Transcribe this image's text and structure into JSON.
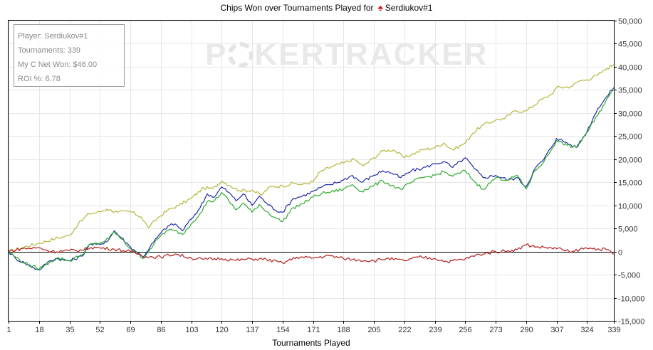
{
  "title": {
    "text_before": "Chips Won over Tournaments Played for",
    "player": "Serdiukov#1",
    "icon": "spade-icon"
  },
  "watermark": {
    "left": "P",
    "right": "KERTRACKER"
  },
  "stats": {
    "player": "Player: Serdiukov#1",
    "tournaments": "Tournaments: 339",
    "net_won": "My C Net Won: $46.00",
    "roi": "ROI %: 6.78"
  },
  "chart_data": {
    "type": "line",
    "title": "Chips Won over Tournaments Played for Serdiukov#1",
    "xlabel": "Tournaments Played",
    "ylabel": "",
    "xlim": [
      1,
      339
    ],
    "ylim": [
      -15000,
      50000
    ],
    "x_ticks": [
      1,
      18,
      35,
      52,
      69,
      86,
      103,
      120,
      137,
      154,
      171,
      188,
      205,
      222,
      239,
      256,
      273,
      290,
      307,
      324,
      339
    ],
    "y_ticks": [
      -15000,
      -10000,
      -5000,
      0,
      5000,
      10000,
      15000,
      20000,
      25000,
      30000,
      35000,
      40000,
      45000,
      50000
    ],
    "y_tick_labels": [
      "-15,000",
      "-10,000",
      "-5,000",
      "0",
      "5,000",
      "10,000",
      "15,000",
      "20,000",
      "25,000",
      "30,000",
      "35,000",
      "40,000",
      "45,000",
      "50,000"
    ],
    "grid": true,
    "series": [
      {
        "color": "#b5b53a",
        "x": [
          1,
          10,
          18,
          27,
          35,
          40,
          46,
          52,
          56,
          62,
          69,
          75,
          79,
          85,
          90,
          96,
          103,
          110,
          115,
          120,
          125,
          130,
          137,
          142,
          147,
          154,
          160,
          165,
          171,
          175,
          181,
          188,
          194,
          199,
          205,
          210,
          216,
          222,
          226,
          232,
          239,
          244,
          249,
          256,
          260,
          265,
          273,
          278,
          284,
          290,
          297,
          304,
          307,
          315,
          320,
          324,
          330,
          335,
          339
        ],
        "y": [
          0,
          1000,
          1800,
          2800,
          3500,
          6000,
          8200,
          8600,
          9200,
          8500,
          8700,
          7500,
          5200,
          7500,
          9000,
          10000,
          11500,
          13800,
          13600,
          15300,
          14200,
          13200,
          13300,
          12200,
          14000,
          14200,
          14800,
          14500,
          15100,
          17300,
          18300,
          19200,
          20000,
          18500,
          20300,
          21800,
          22000,
          20300,
          21000,
          22000,
          22500,
          23500,
          22000,
          23500,
          25500,
          27200,
          28500,
          28800,
          30500,
          30400,
          32500,
          34000,
          35500,
          35700,
          37000,
          37200,
          38200,
          39600,
          40500
        ]
      },
      {
        "color": "#1f2aa8",
        "x": [
          1,
          5,
          10,
          18,
          24,
          28,
          35,
          42,
          46,
          52,
          57,
          60,
          64,
          69,
          73,
          76,
          80,
          86,
          90,
          94,
          98,
          103,
          108,
          112,
          116,
          120,
          124,
          128,
          132,
          137,
          141,
          145,
          150,
          154,
          160,
          165,
          171,
          176,
          181,
          188,
          193,
          198,
          205,
          210,
          215,
          220,
          226,
          232,
          239,
          244,
          249,
          256,
          261,
          266,
          273,
          280,
          285,
          290,
          295,
          300,
          307,
          313,
          318,
          324,
          330,
          335,
          339
        ],
        "y": [
          0,
          -1500,
          -2500,
          -4000,
          -2000,
          -1500,
          -2000,
          -1000,
          1500,
          1500,
          2600,
          4500,
          3000,
          1000,
          -200,
          -1200,
          1000,
          4000,
          5500,
          6000,
          4500,
          7000,
          9500,
          12500,
          11800,
          14000,
          12800,
          11000,
          12500,
          10000,
          12000,
          10500,
          9000,
          8500,
          11500,
          12000,
          13000,
          14000,
          14500,
          15500,
          16500,
          15000,
          16500,
          17500,
          17000,
          16000,
          17500,
          18000,
          19000,
          19500,
          18200,
          20300,
          18000,
          16000,
          16500,
          15500,
          16000,
          14000,
          18000,
          20000,
          24500,
          23500,
          22500,
          26000,
          31000,
          33500,
          35500
        ]
      },
      {
        "color": "#2cab2c",
        "x": [
          1,
          5,
          10,
          18,
          24,
          28,
          35,
          42,
          46,
          52,
          57,
          60,
          64,
          69,
          73,
          76,
          80,
          86,
          90,
          94,
          98,
          103,
          108,
          112,
          116,
          120,
          124,
          128,
          132,
          137,
          141,
          145,
          150,
          154,
          160,
          165,
          171,
          176,
          181,
          188,
          193,
          198,
          205,
          210,
          215,
          220,
          226,
          232,
          239,
          244,
          249,
          256,
          261,
          266,
          273,
          280,
          285,
          290,
          295,
          300,
          307,
          313,
          318,
          324,
          330,
          335,
          339
        ],
        "y": [
          0,
          -1200,
          -2500,
          -3800,
          -2300,
          -1400,
          -2000,
          -700,
          1400,
          1800,
          2800,
          4300,
          2700,
          700,
          -400,
          -1500,
          500,
          3500,
          4600,
          4500,
          3700,
          6000,
          8300,
          10800,
          11000,
          12800,
          11000,
          9000,
          10500,
          8500,
          10200,
          8700,
          7300,
          6500,
          9500,
          10300,
          11800,
          12600,
          12900,
          13500,
          14500,
          13000,
          14300,
          15300,
          14300,
          13500,
          15000,
          16000,
          16500,
          17300,
          16300,
          17500,
          15200,
          13500,
          16000,
          15500,
          16500,
          13500,
          17500,
          19500,
          24000,
          23000,
          22500,
          25800,
          29500,
          33000,
          35000
        ]
      },
      {
        "color": "#b51e1e",
        "x": [
          1,
          8,
          18,
          25,
          35,
          42,
          47,
          52,
          60,
          69,
          78,
          86,
          94,
          103,
          110,
          120,
          128,
          137,
          145,
          154,
          162,
          171,
          180,
          188,
          196,
          205,
          212,
          222,
          230,
          239,
          246,
          256,
          264,
          273,
          280,
          285,
          290,
          296,
          304,
          310,
          315,
          320,
          324,
          330,
          335,
          339
        ],
        "y": [
          0,
          600,
          800,
          0,
          200,
          300,
          900,
          800,
          500,
          0,
          -1100,
          -1200,
          -500,
          -1400,
          -1700,
          -1500,
          -1900,
          -1600,
          -1700,
          -2500,
          -1200,
          -1400,
          -900,
          -1500,
          -1800,
          -2000,
          -1500,
          -2000,
          -1200,
          -1500,
          -2200,
          -1600,
          -600,
          0,
          200,
          400,
          1500,
          1000,
          800,
          500,
          -200,
          500,
          700,
          600,
          400,
          -600
        ]
      }
    ]
  }
}
